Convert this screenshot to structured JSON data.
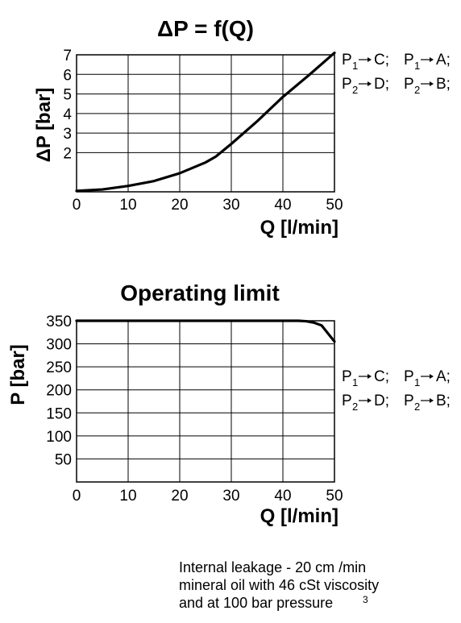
{
  "chart_data": [
    {
      "type": "line",
      "title": "ΔP = f(Q)",
      "xlabel": "Q [l/min]",
      "ylabel": "ΔP [bar]",
      "xlim": [
        0,
        50
      ],
      "ylim": [
        0,
        7
      ],
      "xticks": [
        "0",
        "10",
        "20",
        "30",
        "40",
        "50"
      ],
      "yticks": [
        "2",
        "3",
        "4",
        "5",
        "6",
        "7"
      ],
      "grid": true,
      "legend": [
        {
          "main": "P",
          "sub": "1",
          "target": "C; "
        },
        {
          "main": "P",
          "sub": "1",
          "target": "A;"
        },
        {
          "main": "P",
          "sub": "2",
          "target": "D; "
        },
        {
          "main": "P",
          "sub": "2",
          "target": "B;"
        }
      ],
      "series": [
        {
          "x": [
            0,
            5,
            10,
            15,
            20,
            25,
            27,
            30,
            35,
            40,
            45,
            50
          ],
          "y": [
            0.05,
            0.12,
            0.3,
            0.55,
            0.95,
            1.5,
            1.8,
            2.45,
            3.6,
            4.85,
            5.95,
            7.1
          ]
        }
      ]
    },
    {
      "type": "line",
      "title": "Operating limit",
      "xlabel": "Q [l/min]",
      "ylabel": "P [bar]",
      "xlim": [
        0,
        50
      ],
      "ylim": [
        0,
        350
      ],
      "xticks": [
        "0",
        "10",
        "20",
        "30",
        "40",
        "50"
      ],
      "yticks": [
        "50",
        "100",
        "150",
        "200",
        "250",
        "300",
        "350"
      ],
      "grid": true,
      "legend": [
        {
          "main": "P",
          "sub": "1",
          "target": "C; "
        },
        {
          "main": "P",
          "sub": "1",
          "target": "A;"
        },
        {
          "main": "P",
          "sub": "2",
          "target": "D; "
        },
        {
          "main": "P",
          "sub": "2",
          "target": "B;"
        }
      ],
      "series": [
        {
          "x": [
            0,
            43,
            44.5,
            46,
            47.5,
            50
          ],
          "y": [
            350,
            350,
            349,
            346,
            340,
            305
          ]
        }
      ]
    }
  ],
  "note": {
    "line1": "Internal leakage - 20 cm /min",
    "superscript": "3",
    "line2": "mineral oil with 46 cSt viscosity",
    "line3": "and at 100 bar pressure"
  }
}
